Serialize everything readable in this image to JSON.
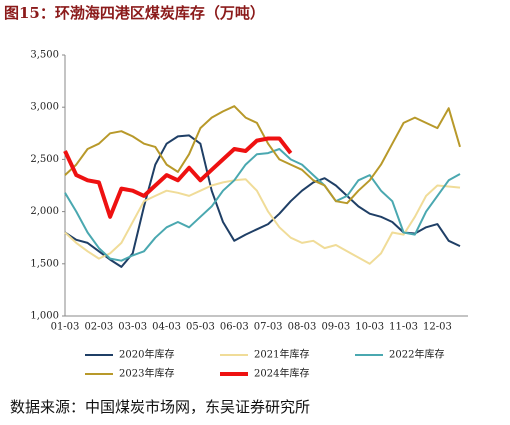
{
  "chart_data": {
    "type": "line",
    "title": "图15：环渤海四港区煤炭库存（万吨）",
    "source": "数据来源：中国煤炭市场网，东吴证券研究所",
    "categories": [
      "01-03",
      null,
      null,
      "02-03",
      null,
      null,
      "03-03",
      null,
      null,
      "04-03",
      null,
      null,
      "05-03",
      null,
      null,
      "06-03",
      null,
      null,
      "07-03",
      null,
      null,
      "08-03",
      null,
      null,
      "09-03",
      null,
      null,
      "10-03",
      null,
      null,
      "11-03",
      null,
      null,
      "12-03",
      null,
      null
    ],
    "ylim": [
      1000,
      3500
    ],
    "yticks": [
      {
        "value": 1000,
        "label": "1,000"
      },
      {
        "value": 1500,
        "label": "1,500"
      },
      {
        "value": 2000,
        "label": "2,000"
      },
      {
        "value": 2500,
        "label": "2,500"
      },
      {
        "value": 3000,
        "label": "3,000"
      },
      {
        "value": 3500,
        "label": "3,500"
      }
    ],
    "series": [
      {
        "name": "2020年库存",
        "color": "#1f3f66",
        "width": 2,
        "values": [
          1800,
          1730,
          1700,
          1620,
          1540,
          1470,
          1600,
          2050,
          2450,
          2650,
          2720,
          2730,
          2650,
          2200,
          1900,
          1720,
          1780,
          1830,
          1880,
          1980,
          2100,
          2200,
          2280,
          2320,
          2250,
          2150,
          2050,
          1980,
          1950,
          1900,
          1800,
          1790,
          1850,
          1880,
          1720,
          1670
        ]
      },
      {
        "name": "2021年库存",
        "color": "#f0dc98",
        "width": 2,
        "values": [
          1800,
          1700,
          1620,
          1550,
          1600,
          1700,
          1900,
          2100,
          2150,
          2200,
          2180,
          2150,
          2200,
          2250,
          2280,
          2300,
          2310,
          2200,
          2000,
          1850,
          1750,
          1700,
          1720,
          1650,
          1680,
          1620,
          1560,
          1500,
          1600,
          1800,
          1780,
          1950,
          2150,
          2250,
          2240,
          2230
        ]
      },
      {
        "name": "2022年库存",
        "color": "#4aa8b0",
        "width": 2,
        "values": [
          2180,
          2000,
          1800,
          1650,
          1550,
          1530,
          1580,
          1620,
          1750,
          1850,
          1900,
          1850,
          1950,
          2050,
          2200,
          2300,
          2450,
          2550,
          2560,
          2600,
          2500,
          2450,
          2350,
          2250,
          2100,
          2150,
          2300,
          2350,
          2200,
          2100,
          1800,
          1780,
          2000,
          2150,
          2300,
          2360
        ]
      },
      {
        "name": "2023年库存",
        "color": "#b8992a",
        "width": 2,
        "values": [
          2350,
          2450,
          2600,
          2650,
          2750,
          2770,
          2720,
          2650,
          2620,
          2450,
          2380,
          2550,
          2800,
          2900,
          2960,
          3010,
          2900,
          2850,
          2650,
          2500,
          2450,
          2400,
          2300,
          2250,
          2100,
          2080,
          2200,
          2300,
          2450,
          2650,
          2850,
          2900,
          2850,
          2800,
          2990,
          2620
        ]
      },
      {
        "name": "2024年库存",
        "color": "#ee1111",
        "width": 4,
        "values": [
          2580,
          2350,
          2300,
          2280,
          1950,
          2220,
          2200,
          2150,
          2250,
          2350,
          2300,
          2420,
          2300,
          2400,
          2500,
          2600,
          2580,
          2680,
          2700,
          2700,
          2560,
          null,
          null,
          null,
          null,
          null,
          null,
          null,
          null,
          null,
          null,
          null,
          null,
          null,
          null,
          null
        ]
      }
    ]
  }
}
